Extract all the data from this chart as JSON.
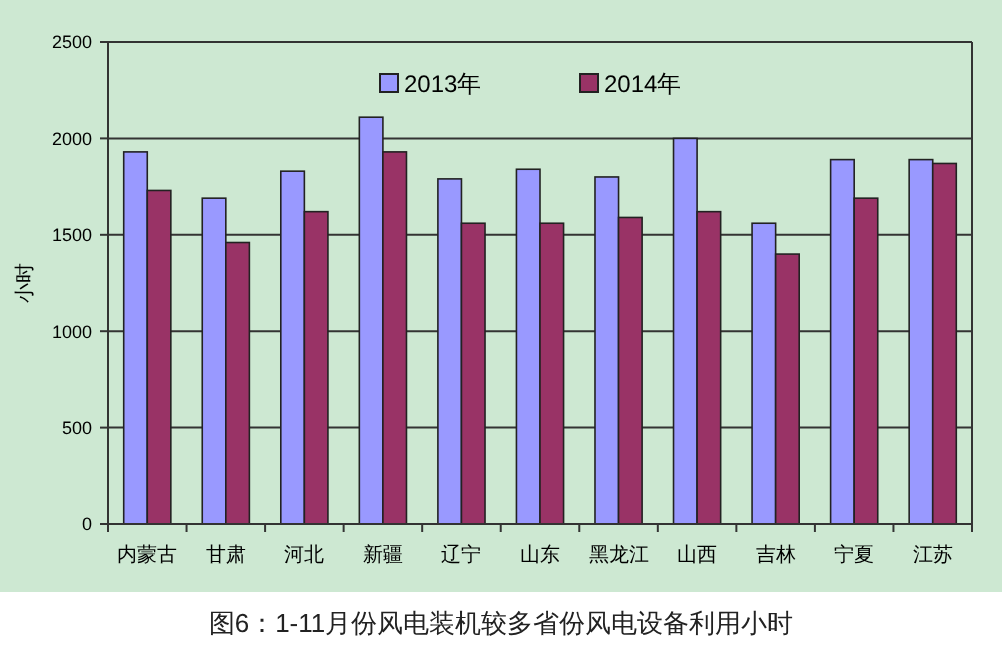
{
  "chart_data": {
    "type": "bar",
    "title": "图6：1-11月份风电装机较多省份风电设备利用小时",
    "ylabel": "小时",
    "categories": [
      "内蒙古",
      "甘肃",
      "河北",
      "新疆",
      "辽宁",
      "山东",
      "黑龙江",
      "山西",
      "吉林",
      "宁夏",
      "江苏"
    ],
    "series": [
      {
        "name": "2013年",
        "color": "#9999ff",
        "values": [
          1930,
          1690,
          1830,
          2110,
          1790,
          1840,
          1800,
          2000,
          1560,
          1890,
          1890
        ]
      },
      {
        "name": "2014年",
        "color": "#993366",
        "values": [
          1730,
          1460,
          1620,
          1930,
          1560,
          1560,
          1590,
          1620,
          1400,
          1690,
          1870
        ]
      }
    ],
    "ylim": [
      0,
      2500
    ],
    "yticks": [
      0,
      500,
      1000,
      1500,
      2000,
      2500
    ],
    "grid": "y",
    "legend": "top"
  }
}
